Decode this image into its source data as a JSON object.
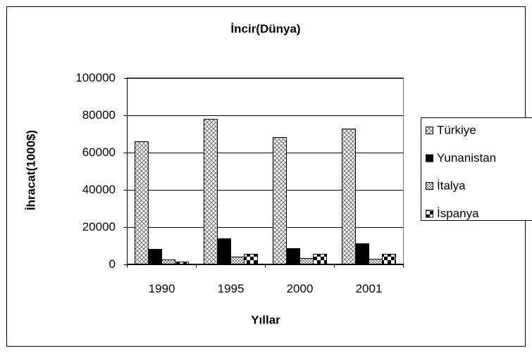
{
  "chart_data": {
    "type": "bar",
    "title": "İncir(Dünya)",
    "y_label": "İhracat(1000$)",
    "x_label": "Yıllar",
    "categories": [
      "1990",
      "1995",
      "2000",
      "2001"
    ],
    "series": [
      {
        "name": "Türkiye",
        "color": "#808080",
        "values": [
          65700,
          77700,
          67900,
          72500
        ]
      },
      {
        "name": "Yunanistan",
        "color": "#000000",
        "values": [
          7900,
          13600,
          8300,
          10900
        ]
      },
      {
        "name": "İtalya",
        "color": "#808080",
        "values": [
          2300,
          3800,
          3000,
          2600
        ]
      },
      {
        "name": "İspanya",
        "color": "#000000",
        "values": [
          1100,
          5300,
          5300,
          5300
        ]
      }
    ],
    "ylim": [
      0,
      100000
    ],
    "yticks": [
      0,
      20000,
      40000,
      60000,
      80000,
      100000
    ],
    "grid": true,
    "legend": "right"
  }
}
